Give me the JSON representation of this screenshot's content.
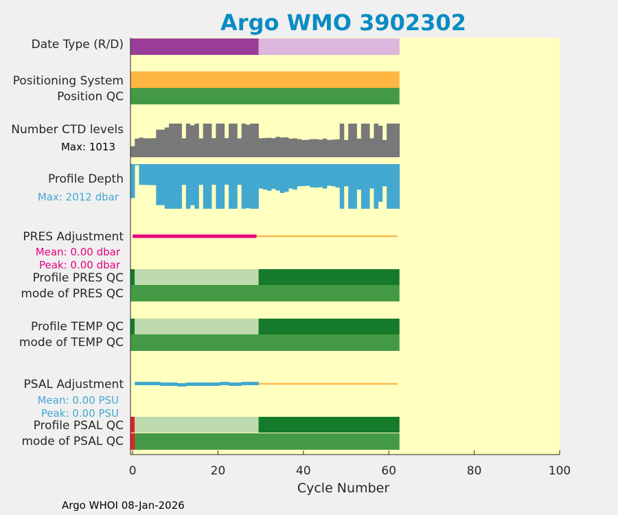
{
  "chart_data": {
    "type": "bar",
    "title": "Argo WMO 3902302",
    "xlabel": "Cycle Number",
    "xlim": [
      -0.5,
      100
    ],
    "xticks": [
      0,
      20,
      40,
      60,
      80,
      100
    ],
    "tick_labels": [
      "0",
      "20",
      "40",
      "60",
      "80",
      "100"
    ],
    "n_cycles": 63,
    "footer": "Argo WHOI 08-Jan-2026",
    "colors": {
      "background": "#ffffc0",
      "title": "#0a8cc3",
      "date_realtime": "#993d99",
      "date_delayed": "#dcb6dc",
      "positioning": "#feb643",
      "qc_good": "#449a44",
      "qc_dark": "#157a29",
      "qc_light": "#bedbaf",
      "ctd": "#787878",
      "depth": "#43a8d0",
      "pres_adj": "#e6007e",
      "psal_adj": "#43a8d0",
      "adj_line": "#fdb84b",
      "qc_bad": "#e42028",
      "qc_bad_light": "#f5a8a8"
    },
    "rows": {
      "date_type": {
        "label": "Date Type (R/D)",
        "realtime_cycles": [
          0,
          29
        ],
        "delayed_cycles": [
          30,
          62
        ]
      },
      "positioning": {
        "label": "Positioning System",
        "value": "GPS"
      },
      "position_qc": {
        "label": "Position QC",
        "value": "good"
      },
      "ctd_levels": {
        "label": "Number CTD levels",
        "max_label": "Max: 1013",
        "max": 1013,
        "values": [
          330,
          560,
          590,
          570,
          570,
          575,
          830,
          830,
          895,
          1013,
          1013,
          1013,
          570,
          1013,
          960,
          1013,
          570,
          1013,
          1013,
          575,
          1013,
          1013,
          575,
          1013,
          1013,
          570,
          1013,
          980,
          1013,
          1013,
          570,
          580,
          585,
          575,
          615,
          595,
          600,
          560,
          570,
          545,
          520,
          525,
          545,
          545,
          530,
          560,
          520,
          530,
          540,
          1013,
          520,
          1013,
          1013,
          560,
          1013,
          1013,
          570,
          1013,
          950,
          520,
          1013,
          1013,
          1013
        ]
      },
      "profile_depth": {
        "label": "Profile Depth",
        "max_label": "Max: 2012 dbar",
        "max": 2012,
        "values": [
          1530,
          50,
          935,
          940,
          945,
          950,
          1850,
          1850,
          2012,
          2012,
          2012,
          2012,
          935,
          2012,
          1850,
          2012,
          935,
          2012,
          2012,
          930,
          2012,
          2012,
          930,
          2012,
          2012,
          935,
          2012,
          1990,
          2012,
          2012,
          1100,
          1150,
          1200,
          1120,
          1190,
          1300,
          1250,
          1100,
          1150,
          1000,
          990,
          980,
          1050,
          1060,
          1040,
          1100,
          970,
          1000,
          1060,
          2012,
          1000,
          2012,
          2012,
          1150,
          2012,
          2012,
          1100,
          2012,
          1700,
          1000,
          2012,
          2012,
          2012
        ]
      },
      "pres_adjustment": {
        "label": "PRES Adjustment",
        "mean_label": "Mean: 0.00 dbar",
        "peak_label": "Peak: 0.00 dbar",
        "adjusted_cycles": [
          0,
          29
        ],
        "line_cycles": [
          29,
          62
        ]
      },
      "profile_pres_qc": {
        "label": "Profile PRES QC",
        "first_dark_cycle": 0,
        "light_cycles": [
          1,
          29
        ],
        "dark_cycles": [
          30,
          62
        ]
      },
      "mode_pres_qc": {
        "label": "mode of PRES QC",
        "value": "good"
      },
      "profile_temp_qc": {
        "label": "Profile TEMP QC",
        "first_dark_cycle": 0,
        "light_cycles": [
          1,
          29
        ],
        "dark_cycles": [
          30,
          62
        ]
      },
      "mode_temp_qc": {
        "label": "mode of TEMP QC",
        "value": "good"
      },
      "psal_adjustment": {
        "label": "PSAL Adjustment",
        "mean_label": "Mean: 0.00 PSU",
        "peak_label": "Peak: 0.00 PSU",
        "adjusted_cycles": [
          1,
          29
        ],
        "line_cycles": [
          29,
          62
        ]
      },
      "profile_psal_qc": {
        "label": "Profile PSAL QC",
        "bad_cycle": 0,
        "light_cycles": [
          1,
          29
        ],
        "dark_cycles": [
          30,
          62
        ]
      },
      "mode_psal_qc": {
        "label": "mode of PSAL QC",
        "bad_cycle": 0
      }
    }
  }
}
